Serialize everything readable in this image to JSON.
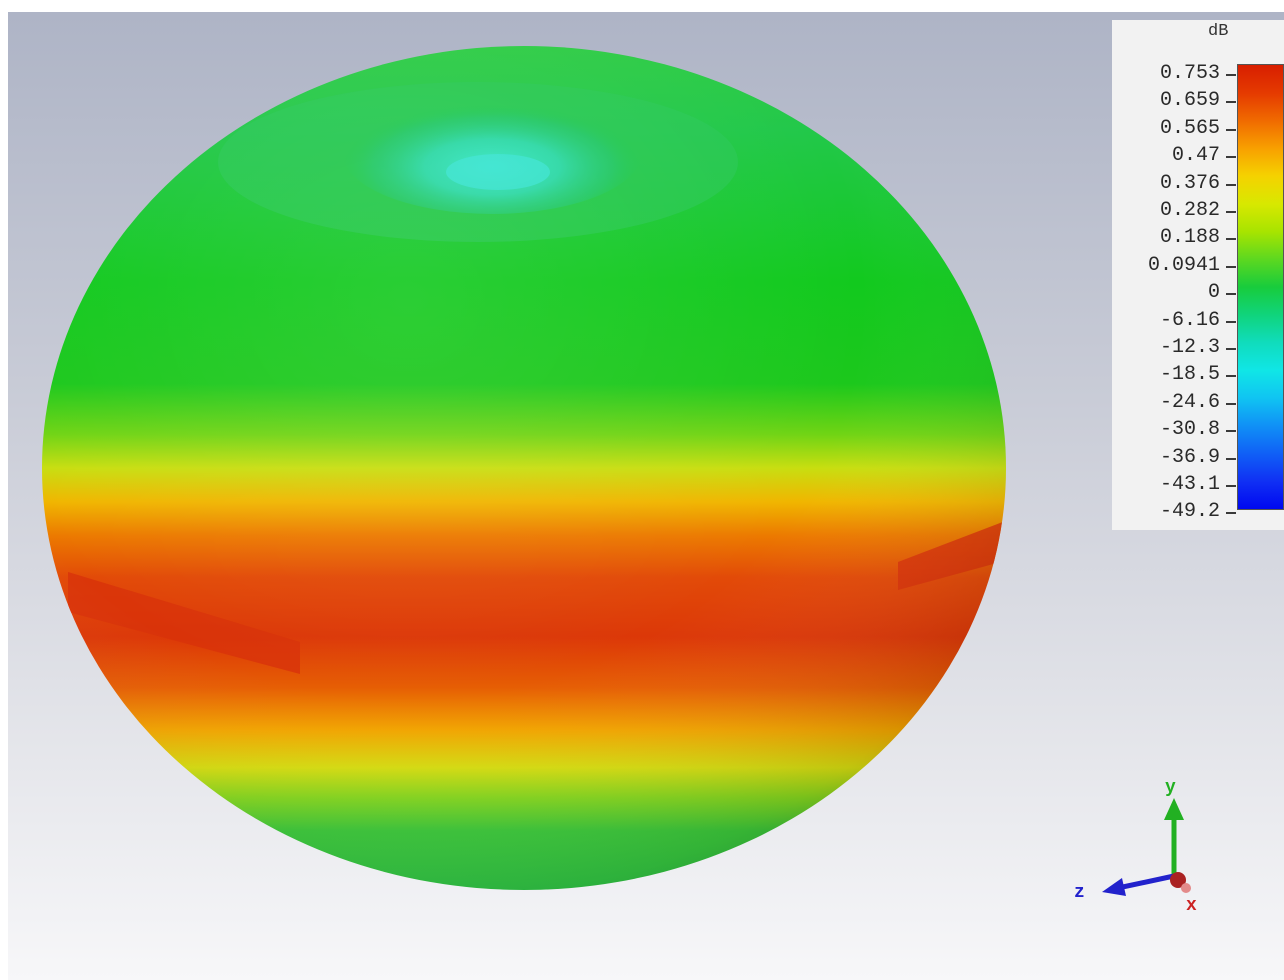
{
  "legend": {
    "unit": "dB",
    "ticks": [
      "0.753",
      "0.659",
      "0.565",
      "0.47",
      "0.376",
      "0.282",
      "0.188",
      "0.0941",
      "0",
      "-6.16",
      "-12.3",
      "-18.5",
      "-24.6",
      "-30.8",
      "-36.9",
      "-43.1",
      "-49.2"
    ],
    "colors": [
      "#d81e00",
      "#e53a00",
      "#f06a00",
      "#f8a000",
      "#f5d200",
      "#d8e800",
      "#a8e400",
      "#5cd820",
      "#18cc3c",
      "#10d47c",
      "#10dcbc",
      "#10e6e6",
      "#10c4f2",
      "#1090f6",
      "#1060f6",
      "#1030f4",
      "#0008f0"
    ]
  },
  "triad": {
    "y_label": "y",
    "z_label": "z",
    "x_label": "x",
    "y_color": "#22b022",
    "z_color": "#2222cc",
    "x_color": "#cc2222"
  },
  "pattern": {
    "max_band_color": "#dd3a0a",
    "null_color": "#36dba0",
    "body_color": "#2dc83a"
  }
}
